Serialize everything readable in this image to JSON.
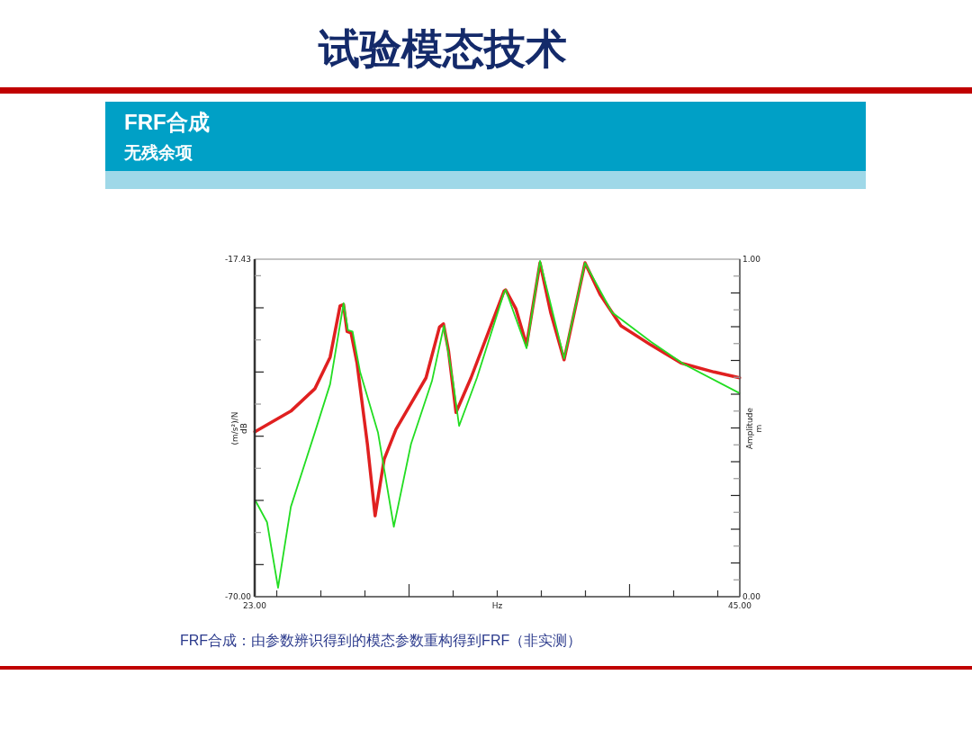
{
  "chart_data": {
    "type": "line",
    "title": "试验模态技术",
    "subtitle": "FRF合成",
    "annotations": [
      "无残余项",
      "FRF合成：由参数辨识得到的模态参数重构得到FRF（非实测）"
    ],
    "xlabel": "Hz",
    "ylabel": "(m/s²)/N\ndB",
    "y2label": "Amplitude\nm",
    "xlim": [
      23,
      45
    ],
    "xticks": [
      {
        "value": 23,
        "label": "23.00"
      },
      {
        "value": 24,
        "label": null
      },
      {
        "value": 26,
        "label": null
      },
      {
        "value": 28,
        "label": null
      },
      {
        "value": 30,
        "label": null
      },
      {
        "value": 32,
        "label": null
      },
      {
        "value": 34,
        "label": null
      },
      {
        "value": 36,
        "label": null
      },
      {
        "value": 38,
        "label": null
      },
      {
        "value": 40,
        "label": null
      },
      {
        "value": 42,
        "label": null
      },
      {
        "value": 44,
        "label": null
      },
      {
        "value": 45,
        "label": "45.00"
      }
    ],
    "ylim": [
      -70,
      -17.43
    ],
    "yticks": [
      {
        "value": -70,
        "label": "-70.00"
      },
      {
        "value": -65,
        "label": null
      },
      {
        "value": -60,
        "label": null
      },
      {
        "value": -55,
        "label": null
      },
      {
        "value": -50,
        "label": null
      },
      {
        "value": -45,
        "label": null
      },
      {
        "value": -40,
        "label": null
      },
      {
        "value": -35,
        "label": null
      },
      {
        "value": -30,
        "label": null
      },
      {
        "value": -25,
        "label": null
      },
      {
        "value": -20,
        "label": null
      },
      {
        "value": -17.43,
        "label": "-17.43"
      }
    ],
    "y2lim": [
      0,
      1
    ],
    "y2ticks": [
      {
        "value": 0,
        "label": "0.00"
      },
      {
        "value": 0.05,
        "label": null
      },
      {
        "value": 0.1,
        "label": null
      },
      {
        "value": 0.15,
        "label": null
      },
      {
        "value": 0.2,
        "label": null
      },
      {
        "value": 0.25,
        "label": null
      },
      {
        "value": 0.3,
        "label": null
      },
      {
        "value": 0.35,
        "label": null
      },
      {
        "value": 0.4,
        "label": null
      },
      {
        "value": 0.45,
        "label": null
      },
      {
        "value": 0.5,
        "label": null
      },
      {
        "value": 0.55,
        "label": null
      },
      {
        "value": 0.6,
        "label": null
      },
      {
        "value": 0.65,
        "label": null
      },
      {
        "value": 0.7,
        "label": null
      },
      {
        "value": 0.75,
        "label": null
      },
      {
        "value": 0.8,
        "label": null
      },
      {
        "value": 0.85,
        "label": null
      },
      {
        "value": 0.9,
        "label": null
      },
      {
        "value": 0.95,
        "label": null
      },
      {
        "value": 1,
        "label": "1.00"
      }
    ],
    "grid": false,
    "marker": "none",
    "line_style": "solid",
    "series": [
      {
        "color": "#e02020",
        "x": [
          23.01,
          24.64,
          25.73,
          26.42,
          26.87,
          27.03,
          27.19,
          27.37,
          27.64,
          28.11,
          28.46,
          28.87,
          29.41,
          30.77,
          31.38,
          31.56,
          31.79,
          32.13,
          32.81,
          34.31,
          34.38,
          34.85,
          35.33,
          35.94,
          36.42,
          37.03,
          37.98,
          38.66,
          39.61,
          40.97,
          42.33,
          43.83,
          44.99
        ],
        "values": [
          -44.3,
          -41.1,
          -37.6,
          -32.7,
          -24.7,
          -24.5,
          -28.7,
          -28.9,
          -33.6,
          -46.2,
          -57.4,
          -48.6,
          -43.9,
          -35.9,
          -28.0,
          -27.5,
          -31.7,
          -41.3,
          -35.9,
          -22.4,
          -22.2,
          -25.2,
          -30.8,
          -18.0,
          -25.7,
          -33.1,
          -18.0,
          -22.9,
          -27.8,
          -30.8,
          -33.6,
          -35.0,
          -35.9
        ]
      },
      {
        "color": "#22dd22",
        "x": [
          23.01,
          23.56,
          24.06,
          24.64,
          25.73,
          26.42,
          27.03,
          27.23,
          27.44,
          27.78,
          28.59,
          29.31,
          30.09,
          31.04,
          31.58,
          31.99,
          32.27,
          33.08,
          34.31,
          34.38,
          35.33,
          35.94,
          37.03,
          37.98,
          39.2,
          40.97,
          42.47,
          44.99
        ],
        "values": [
          -54.9,
          -58.4,
          -68.6,
          -56.0,
          -44.4,
          -36.9,
          -24.3,
          -28.5,
          -28.7,
          -35.0,
          -44.4,
          -59.1,
          -46.2,
          -36.4,
          -27.8,
          -36.4,
          -43.4,
          -35.9,
          -22.6,
          -22.2,
          -31.3,
          -17.7,
          -32.9,
          -18.0,
          -25.7,
          -30.3,
          -33.8,
          -38.3
        ]
      }
    ]
  }
}
